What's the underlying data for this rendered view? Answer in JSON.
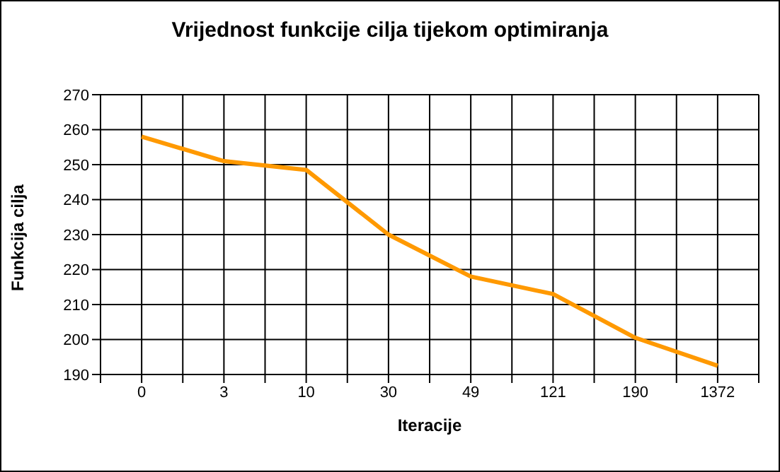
{
  "chart_data": {
    "type": "line",
    "title": "Vrijednost funkcije cilja tijekom optimiranja",
    "xlabel": "Iteracije",
    "ylabel": "Funkcija cilja",
    "categories": [
      "0",
      "3",
      "10",
      "30",
      "49",
      "121",
      "190",
      "1372"
    ],
    "series": [
      {
        "color": "#ff9900",
        "values": [
          258,
          251,
          248.5,
          230,
          218,
          213,
          200.5,
          192.5
        ]
      }
    ],
    "ylim": [
      190,
      270
    ],
    "yticks": [
      190,
      200,
      210,
      220,
      230,
      240,
      250,
      260,
      270
    ],
    "grid": true,
    "legend": false,
    "marker": "none",
    "line_style": "solid"
  }
}
